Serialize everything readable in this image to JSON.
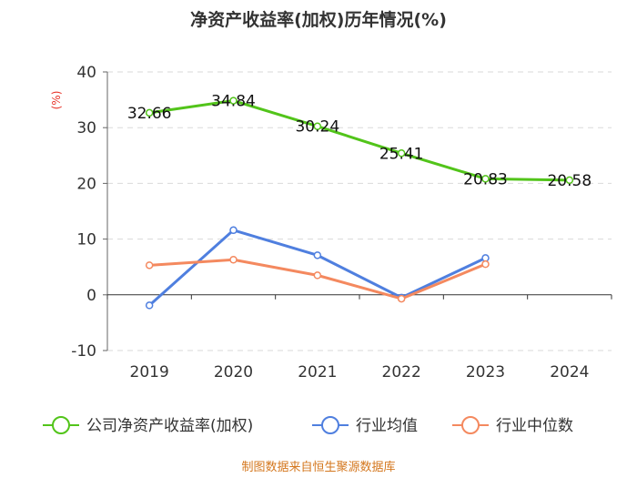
{
  "chart_data": {
    "type": "line",
    "title": "净资产收益率(加权)历年情况(%)",
    "ylabel_unit": "(%)",
    "categories": [
      "2019",
      "2020",
      "2021",
      "2022",
      "2023",
      "2024"
    ],
    "ylim": [
      -10,
      40
    ],
    "yticks": [
      40,
      30,
      20,
      10,
      0,
      -10
    ],
    "grid": true,
    "legend_position": "bottom",
    "series": [
      {
        "name": "公司净资产收益率(加权)",
        "color": "#52c41a",
        "values": [
          32.66,
          34.84,
          30.24,
          25.41,
          20.83,
          20.58
        ],
        "labels": [
          "32.66",
          "34.84",
          "30.24",
          "25.41",
          "20.83",
          "20.58"
        ]
      },
      {
        "name": "行业均值",
        "color": "#4f7fdf",
        "values": [
          -1.9,
          11.6,
          7.1,
          -0.5,
          6.6,
          null
        ]
      },
      {
        "name": "行业中位数",
        "color": "#f4895f",
        "values": [
          5.3,
          6.3,
          3.5,
          -0.7,
          5.5,
          null
        ]
      }
    ],
    "source": "制图数据来自恒生聚源数据库"
  }
}
